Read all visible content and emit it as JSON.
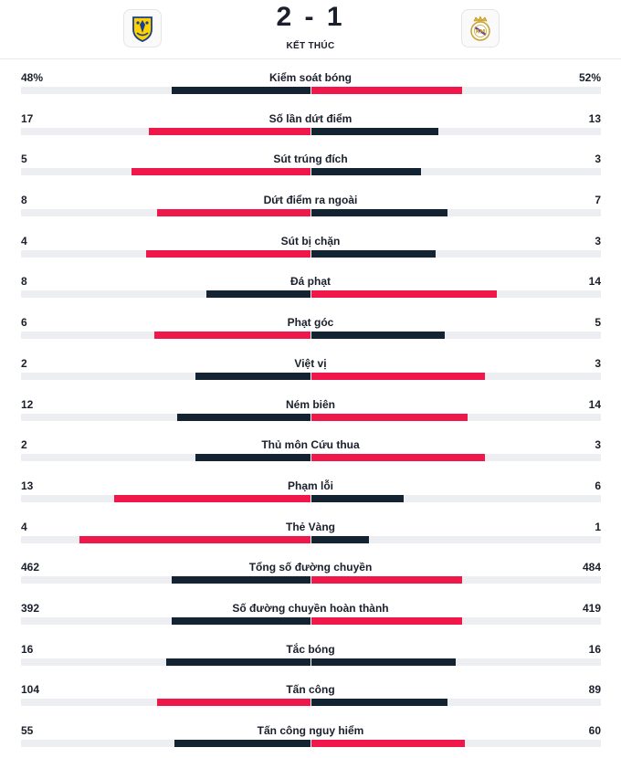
{
  "match": {
    "score": "2 - 1",
    "status": "KẾT THÚC",
    "home_badge_icon": "villarreal-crest-icon",
    "away_badge_icon": "real-madrid-crest-icon"
  },
  "colors": {
    "dark": "#132331",
    "red": "#f0174a",
    "track": "#eceef1"
  },
  "stats": [
    {
      "label": "Kiểm soát bóng",
      "home": "48%",
      "away": "52%",
      "home_fill": 0.48,
      "away_fill": 0.52,
      "home_color": "dark",
      "away_color": "red"
    },
    {
      "label": "Số lần dứt điểm",
      "home": "17",
      "away": "13",
      "home_fill": 0.56,
      "away_fill": 0.44,
      "home_color": "red",
      "away_color": "dark"
    },
    {
      "label": "Sút trúng đích",
      "home": "5",
      "away": "3",
      "home_fill": 0.62,
      "away_fill": 0.38,
      "home_color": "red",
      "away_color": "dark"
    },
    {
      "label": "Dứt điểm ra ngoài",
      "home": "8",
      "away": "7",
      "home_fill": 0.53,
      "away_fill": 0.47,
      "home_color": "red",
      "away_color": "dark"
    },
    {
      "label": "Sút bị chặn",
      "home": "4",
      "away": "3",
      "home_fill": 0.57,
      "away_fill": 0.43,
      "home_color": "red",
      "away_color": "dark"
    },
    {
      "label": "Đá phạt",
      "home": "8",
      "away": "14",
      "home_fill": 0.36,
      "away_fill": 0.64,
      "home_color": "dark",
      "away_color": "red"
    },
    {
      "label": "Phạt góc",
      "home": "6",
      "away": "5",
      "home_fill": 0.54,
      "away_fill": 0.46,
      "home_color": "red",
      "away_color": "dark"
    },
    {
      "label": "Việt vị",
      "home": "2",
      "away": "3",
      "home_fill": 0.4,
      "away_fill": 0.6,
      "home_color": "dark",
      "away_color": "red"
    },
    {
      "label": "Ném biên",
      "home": "12",
      "away": "14",
      "home_fill": 0.46,
      "away_fill": 0.54,
      "home_color": "dark",
      "away_color": "red"
    },
    {
      "label": "Thủ môn Cứu thua",
      "home": "2",
      "away": "3",
      "home_fill": 0.4,
      "away_fill": 0.6,
      "home_color": "dark",
      "away_color": "red"
    },
    {
      "label": "Phạm lỗi",
      "home": "13",
      "away": "6",
      "home_fill": 0.68,
      "away_fill": 0.32,
      "home_color": "red",
      "away_color": "dark"
    },
    {
      "label": "Thẻ Vàng",
      "home": "4",
      "away": "1",
      "home_fill": 0.8,
      "away_fill": 0.2,
      "home_color": "red",
      "away_color": "dark"
    },
    {
      "label": "Tổng số đường chuyền",
      "home": "462",
      "away": "484",
      "home_fill": 0.48,
      "away_fill": 0.52,
      "home_color": "dark",
      "away_color": "red"
    },
    {
      "label": "Số đường chuyền hoàn thành",
      "home": "392",
      "away": "419",
      "home_fill": 0.48,
      "away_fill": 0.52,
      "home_color": "dark",
      "away_color": "red"
    },
    {
      "label": "Tắc bóng",
      "home": "16",
      "away": "16",
      "home_fill": 0.5,
      "away_fill": 0.5,
      "home_color": "dark",
      "away_color": "dark"
    },
    {
      "label": "Tấn công",
      "home": "104",
      "away": "89",
      "home_fill": 0.53,
      "away_fill": 0.47,
      "home_color": "red",
      "away_color": "dark"
    },
    {
      "label": "Tấn công nguy hiểm",
      "home": "55",
      "away": "60",
      "home_fill": 0.47,
      "away_fill": 0.53,
      "home_color": "dark",
      "away_color": "red"
    }
  ]
}
